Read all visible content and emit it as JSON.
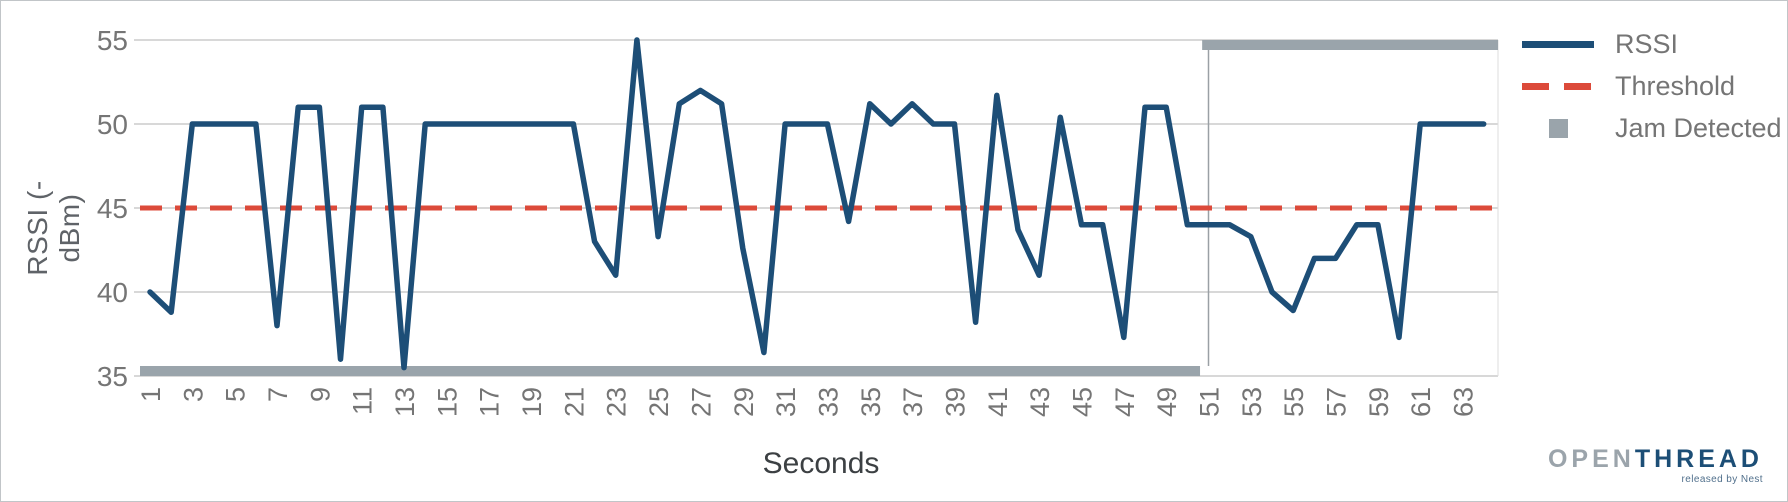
{
  "figure": {
    "background": "#ffffff",
    "border_color": "#c1c5c8"
  },
  "axis": {
    "xlabel": "Seconds",
    "ylabel": "RSSI (-dBm)"
  },
  "legend": {
    "items": [
      {
        "label": "RSSI",
        "type": "solid-line",
        "color": "#1d4e77"
      },
      {
        "label": "Threshold",
        "type": "dashed-line",
        "color": "#dc4a3a"
      },
      {
        "label": "Jam Detected",
        "type": "square",
        "color": "#9aa4ab"
      }
    ]
  },
  "logo": {
    "part1": "OPEN",
    "part2": "THREAD",
    "tagline": "released by Nest"
  },
  "colors": {
    "rssi_line": "#1d4e77",
    "threshold_line": "#dc4a3a",
    "jam_bar": "#9aa4ab",
    "gridline": "#cccccc",
    "tick_text": "#757575"
  },
  "chart_data": {
    "type": "line",
    "title": "",
    "xlabel": "Seconds",
    "ylabel": "RSSI (-dBm)",
    "xlim": [
      0.5,
      64.7
    ],
    "ylim": [
      35,
      55
    ],
    "grid": true,
    "legend_position": "top-right",
    "y_ticks": [
      55,
      50,
      45,
      40,
      35
    ],
    "x_ticks": [
      1,
      3,
      5,
      7,
      9,
      11,
      13,
      15,
      17,
      19,
      21,
      23,
      25,
      27,
      29,
      31,
      33,
      35,
      37,
      39,
      41,
      43,
      45,
      47,
      49,
      51,
      53,
      55,
      57,
      59,
      61,
      63
    ],
    "x": [
      1,
      2,
      3,
      4,
      5,
      6,
      7,
      8,
      9,
      10,
      11,
      12,
      13,
      14,
      15,
      16,
      17,
      18,
      19,
      20,
      21,
      22,
      23,
      24,
      25,
      26,
      27,
      28,
      29,
      30,
      31,
      32,
      33,
      34,
      35,
      36,
      37,
      38,
      39,
      40,
      41,
      42,
      43,
      44,
      45,
      46,
      47,
      48,
      49,
      50,
      51,
      52,
      53,
      54,
      55,
      56,
      57,
      58,
      59,
      60,
      61,
      62,
      63,
      64
    ],
    "series": [
      {
        "name": "RSSI",
        "style": "solid",
        "color": "#1d4e77",
        "values": [
          40,
          38.8,
          50,
          50,
          50,
          50,
          38,
          51,
          51,
          36,
          51,
          51,
          35.5,
          50,
          50,
          50,
          50,
          50,
          50,
          50,
          50,
          43,
          41,
          55,
          43.3,
          51.2,
          52,
          51.2,
          42.6,
          36.4,
          50,
          50,
          50,
          44.2,
          51.2,
          50,
          51.2,
          50,
          50,
          38.2,
          51.7,
          43.7,
          41,
          50.4,
          44,
          44,
          37.3,
          51,
          51,
          44,
          44,
          44,
          43.3,
          40,
          38.9,
          42,
          42,
          44,
          44,
          37.3,
          50,
          50,
          50,
          50
        ]
      },
      {
        "name": "Threshold",
        "style": "dashed",
        "color": "#dc4a3a",
        "constant_value": 45
      },
      {
        "name": "Jam Detected",
        "style": "step-bar",
        "color": "#9aa4ab",
        "low_value": 35.3,
        "high_value": 54.7,
        "transition_x": 51,
        "segments": [
          {
            "x_from": 0.5,
            "x_to": 50.6,
            "state": "not detected",
            "y": 35.3
          },
          {
            "x_from": 50.7,
            "x_to": 64.7,
            "state": "detected",
            "y": 54.7
          }
        ]
      }
    ]
  }
}
